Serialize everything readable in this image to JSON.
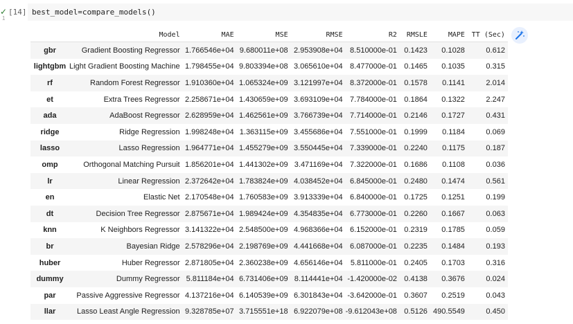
{
  "cell": {
    "run_icon": "✓",
    "run_count": "1",
    "exec_count": "[14]",
    "code": "best_model=compare_models()"
  },
  "icons": {
    "magic_button": "magic-wand-icon",
    "run_status": "check-icon"
  },
  "table": {
    "columns": [
      "Model",
      "MAE",
      "MSE",
      "RMSE",
      "R2",
      "RMSLE",
      "MAPE",
      "TT (Sec)"
    ],
    "rows": [
      {
        "id": "gbr",
        "cells": [
          "Gradient Boosting Regressor",
          "1.766546e+04",
          "9.680011e+08",
          "2.953908e+04",
          "8.510000e-01",
          "0.1423",
          "0.1028",
          "0.612"
        ]
      },
      {
        "id": "lightgbm",
        "cells": [
          "Light Gradient Boosting Machine",
          "1.798455e+04",
          "9.803394e+08",
          "3.065610e+04",
          "8.477000e-01",
          "0.1465",
          "0.1035",
          "0.315"
        ]
      },
      {
        "id": "rf",
        "cells": [
          "Random Forest Regressor",
          "1.910360e+04",
          "1.065324e+09",
          "3.121997e+04",
          "8.372000e-01",
          "0.1578",
          "0.1141",
          "2.014"
        ]
      },
      {
        "id": "et",
        "cells": [
          "Extra Trees Regressor",
          "2.258671e+04",
          "1.430659e+09",
          "3.693109e+04",
          "7.784000e-01",
          "0.1864",
          "0.1322",
          "2.247"
        ]
      },
      {
        "id": "ada",
        "cells": [
          "AdaBoost Regressor",
          "2.628959e+04",
          "1.462561e+09",
          "3.766739e+04",
          "7.714000e-01",
          "0.2146",
          "0.1727",
          "0.431"
        ]
      },
      {
        "id": "ridge",
        "cells": [
          "Ridge Regression",
          "1.998248e+04",
          "1.363115e+09",
          "3.455686e+04",
          "7.551000e-01",
          "0.1999",
          "0.1184",
          "0.069"
        ]
      },
      {
        "id": "lasso",
        "cells": [
          "Lasso Regression",
          "1.964771e+04",
          "1.455279e+09",
          "3.550445e+04",
          "7.339000e-01",
          "0.2240",
          "0.1175",
          "0.187"
        ]
      },
      {
        "id": "omp",
        "cells": [
          "Orthogonal Matching Pursuit",
          "1.856201e+04",
          "1.441302e+09",
          "3.471169e+04",
          "7.322000e-01",
          "0.1686",
          "0.1108",
          "0.036"
        ]
      },
      {
        "id": "lr",
        "cells": [
          "Linear Regression",
          "2.372642e+04",
          "1.783824e+09",
          "4.038452e+04",
          "6.845000e-01",
          "0.2480",
          "0.1474",
          "0.561"
        ]
      },
      {
        "id": "en",
        "cells": [
          "Elastic Net",
          "2.170548e+04",
          "1.760583e+09",
          "3.913339e+04",
          "6.840000e-01",
          "0.1725",
          "0.1251",
          "0.199"
        ]
      },
      {
        "id": "dt",
        "cells": [
          "Decision Tree Regressor",
          "2.875671e+04",
          "1.989424e+09",
          "4.354835e+04",
          "6.773000e-01",
          "0.2260",
          "0.1667",
          "0.063"
        ]
      },
      {
        "id": "knn",
        "cells": [
          "K Neighbors Regressor",
          "3.141322e+04",
          "2.548500e+09",
          "4.968366e+04",
          "6.152000e-01",
          "0.2319",
          "0.1785",
          "0.059"
        ]
      },
      {
        "id": "br",
        "cells": [
          "Bayesian Ridge",
          "2.578296e+04",
          "2.198769e+09",
          "4.441668e+04",
          "6.087000e-01",
          "0.2235",
          "0.1484",
          "0.193"
        ]
      },
      {
        "id": "huber",
        "cells": [
          "Huber Regressor",
          "2.871805e+04",
          "2.360238e+09",
          "4.656146e+04",
          "5.811000e-01",
          "0.2405",
          "0.1703",
          "0.316"
        ]
      },
      {
        "id": "dummy",
        "cells": [
          "Dummy Regressor",
          "5.811184e+04",
          "6.731406e+09",
          "8.114441e+04",
          "-1.420000e-02",
          "0.4138",
          "0.3676",
          "0.024"
        ]
      },
      {
        "id": "par",
        "cells": [
          "Passive Aggressive Regressor",
          "4.137216e+04",
          "6.140539e+09",
          "6.301843e+04",
          "-3.642000e-01",
          "0.3607",
          "0.2519",
          "0.043"
        ]
      },
      {
        "id": "llar",
        "cells": [
          "Lasso Least Angle Regression",
          "9.328785e+07",
          "3.715551e+18",
          "6.922079e+08",
          "-9.612043e+08",
          "0.5126",
          "490.5549",
          "0.450"
        ]
      }
    ]
  }
}
